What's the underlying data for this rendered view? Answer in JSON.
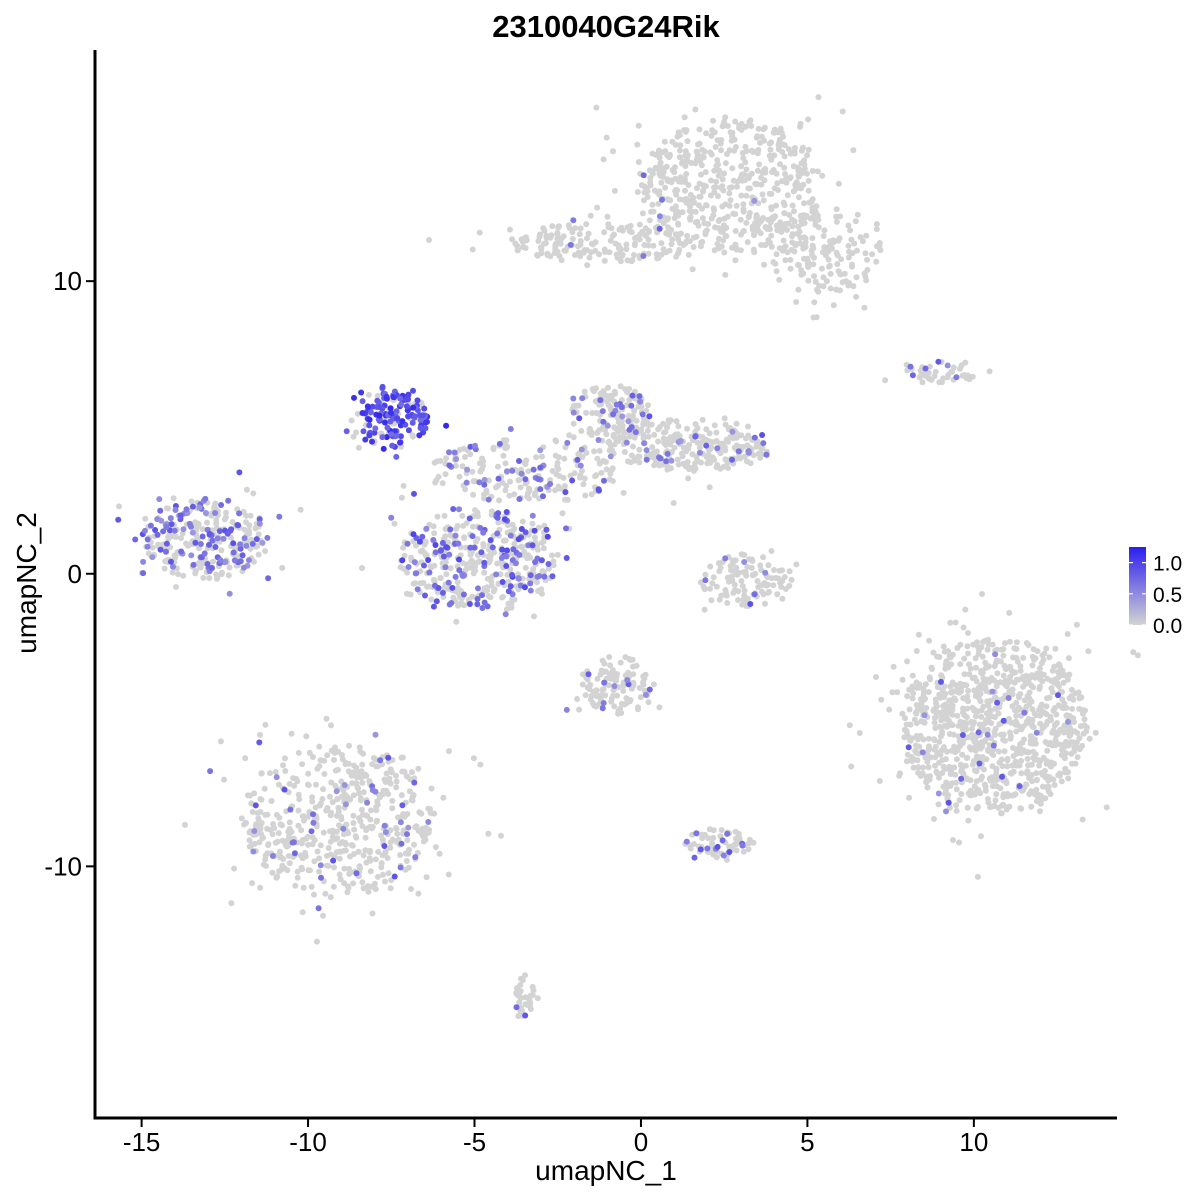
{
  "chart_data": {
    "type": "scatter",
    "title": "2310040G24Rik",
    "xlabel": "umapNC_1",
    "ylabel": "umapNC_2",
    "xlim": [
      -16.4,
      14.3
    ],
    "ylim": [
      -18.6,
      17.9
    ],
    "x_ticks": [
      -15,
      -10,
      -5,
      0,
      5,
      10
    ],
    "x_tick_labels": [
      "-15",
      "-10",
      "-5",
      "0",
      "5",
      "10"
    ],
    "y_ticks": [
      -10,
      0,
      10
    ],
    "y_tick_labels": [
      "-10",
      "0",
      "10"
    ],
    "grid": false,
    "legend_position": "right",
    "color_scale": {
      "low_color": "#d3d3d3",
      "high_color": "#2b1ff0",
      "min": 0.0,
      "max": 1.25,
      "ticks": [
        0.0,
        0.5,
        1.0
      ],
      "tick_labels": [
        "0.0",
        "0.5",
        "1.0"
      ]
    },
    "clusters": [
      {
        "cx": 2.7,
        "cy": 13.2,
        "rx": 2.8,
        "ry": 2.3,
        "n": 520,
        "expr_frac": 0.004
      },
      {
        "cx": 5.4,
        "cy": 11.0,
        "rx": 1.8,
        "ry": 1.4,
        "n": 160,
        "expr_frac": 0.0
      },
      {
        "cx": -1.0,
        "cy": 11.3,
        "rx": 3.0,
        "ry": 0.7,
        "n": 180,
        "expr_frac": 0.015
      },
      {
        "cx": 9.0,
        "cy": 6.9,
        "rx": 1.2,
        "ry": 0.4,
        "n": 45,
        "expr_frac": 0.1
      },
      {
        "cx": -7.5,
        "cy": 5.3,
        "rx": 1.1,
        "ry": 1.0,
        "n": 170,
        "expr_frac": 0.72,
        "expr_level": 0.9
      },
      {
        "cx": -0.9,
        "cy": 5.4,
        "rx": 1.2,
        "ry": 1.1,
        "n": 150,
        "expr_frac": 0.2
      },
      {
        "cx": 1.5,
        "cy": 4.4,
        "rx": 2.5,
        "ry": 0.9,
        "n": 260,
        "expr_frac": 0.1
      },
      {
        "cx": -3.4,
        "cy": 3.5,
        "rx": 3.0,
        "ry": 1.1,
        "n": 200,
        "expr_frac": 0.2
      },
      {
        "cx": -4.9,
        "cy": 0.5,
        "rx": 2.4,
        "ry": 1.7,
        "n": 420,
        "expr_frac": 0.33,
        "expr_level": 0.7
      },
      {
        "cx": -13.1,
        "cy": 1.2,
        "rx": 1.9,
        "ry": 1.4,
        "n": 300,
        "expr_frac": 0.38
      },
      {
        "cx": 3.2,
        "cy": -0.2,
        "rx": 1.4,
        "ry": 0.9,
        "n": 110,
        "expr_frac": 0.06
      },
      {
        "cx": 10.6,
        "cy": -5.2,
        "rx": 2.8,
        "ry": 3.0,
        "n": 950,
        "expr_frac": 0.025
      },
      {
        "cx": -0.7,
        "cy": -3.8,
        "rx": 1.2,
        "ry": 1.0,
        "n": 120,
        "expr_frac": 0.12
      },
      {
        "cx": -9.1,
        "cy": -8.4,
        "rx": 2.9,
        "ry": 2.6,
        "n": 550,
        "expr_frac": 0.09
      },
      {
        "cx": 2.3,
        "cy": -9.2,
        "rx": 1.0,
        "ry": 0.5,
        "n": 70,
        "expr_frac": 0.2
      },
      {
        "cx": -3.5,
        "cy": -14.5,
        "rx": 0.3,
        "ry": 0.8,
        "n": 35,
        "expr_frac": 0.05
      }
    ]
  }
}
